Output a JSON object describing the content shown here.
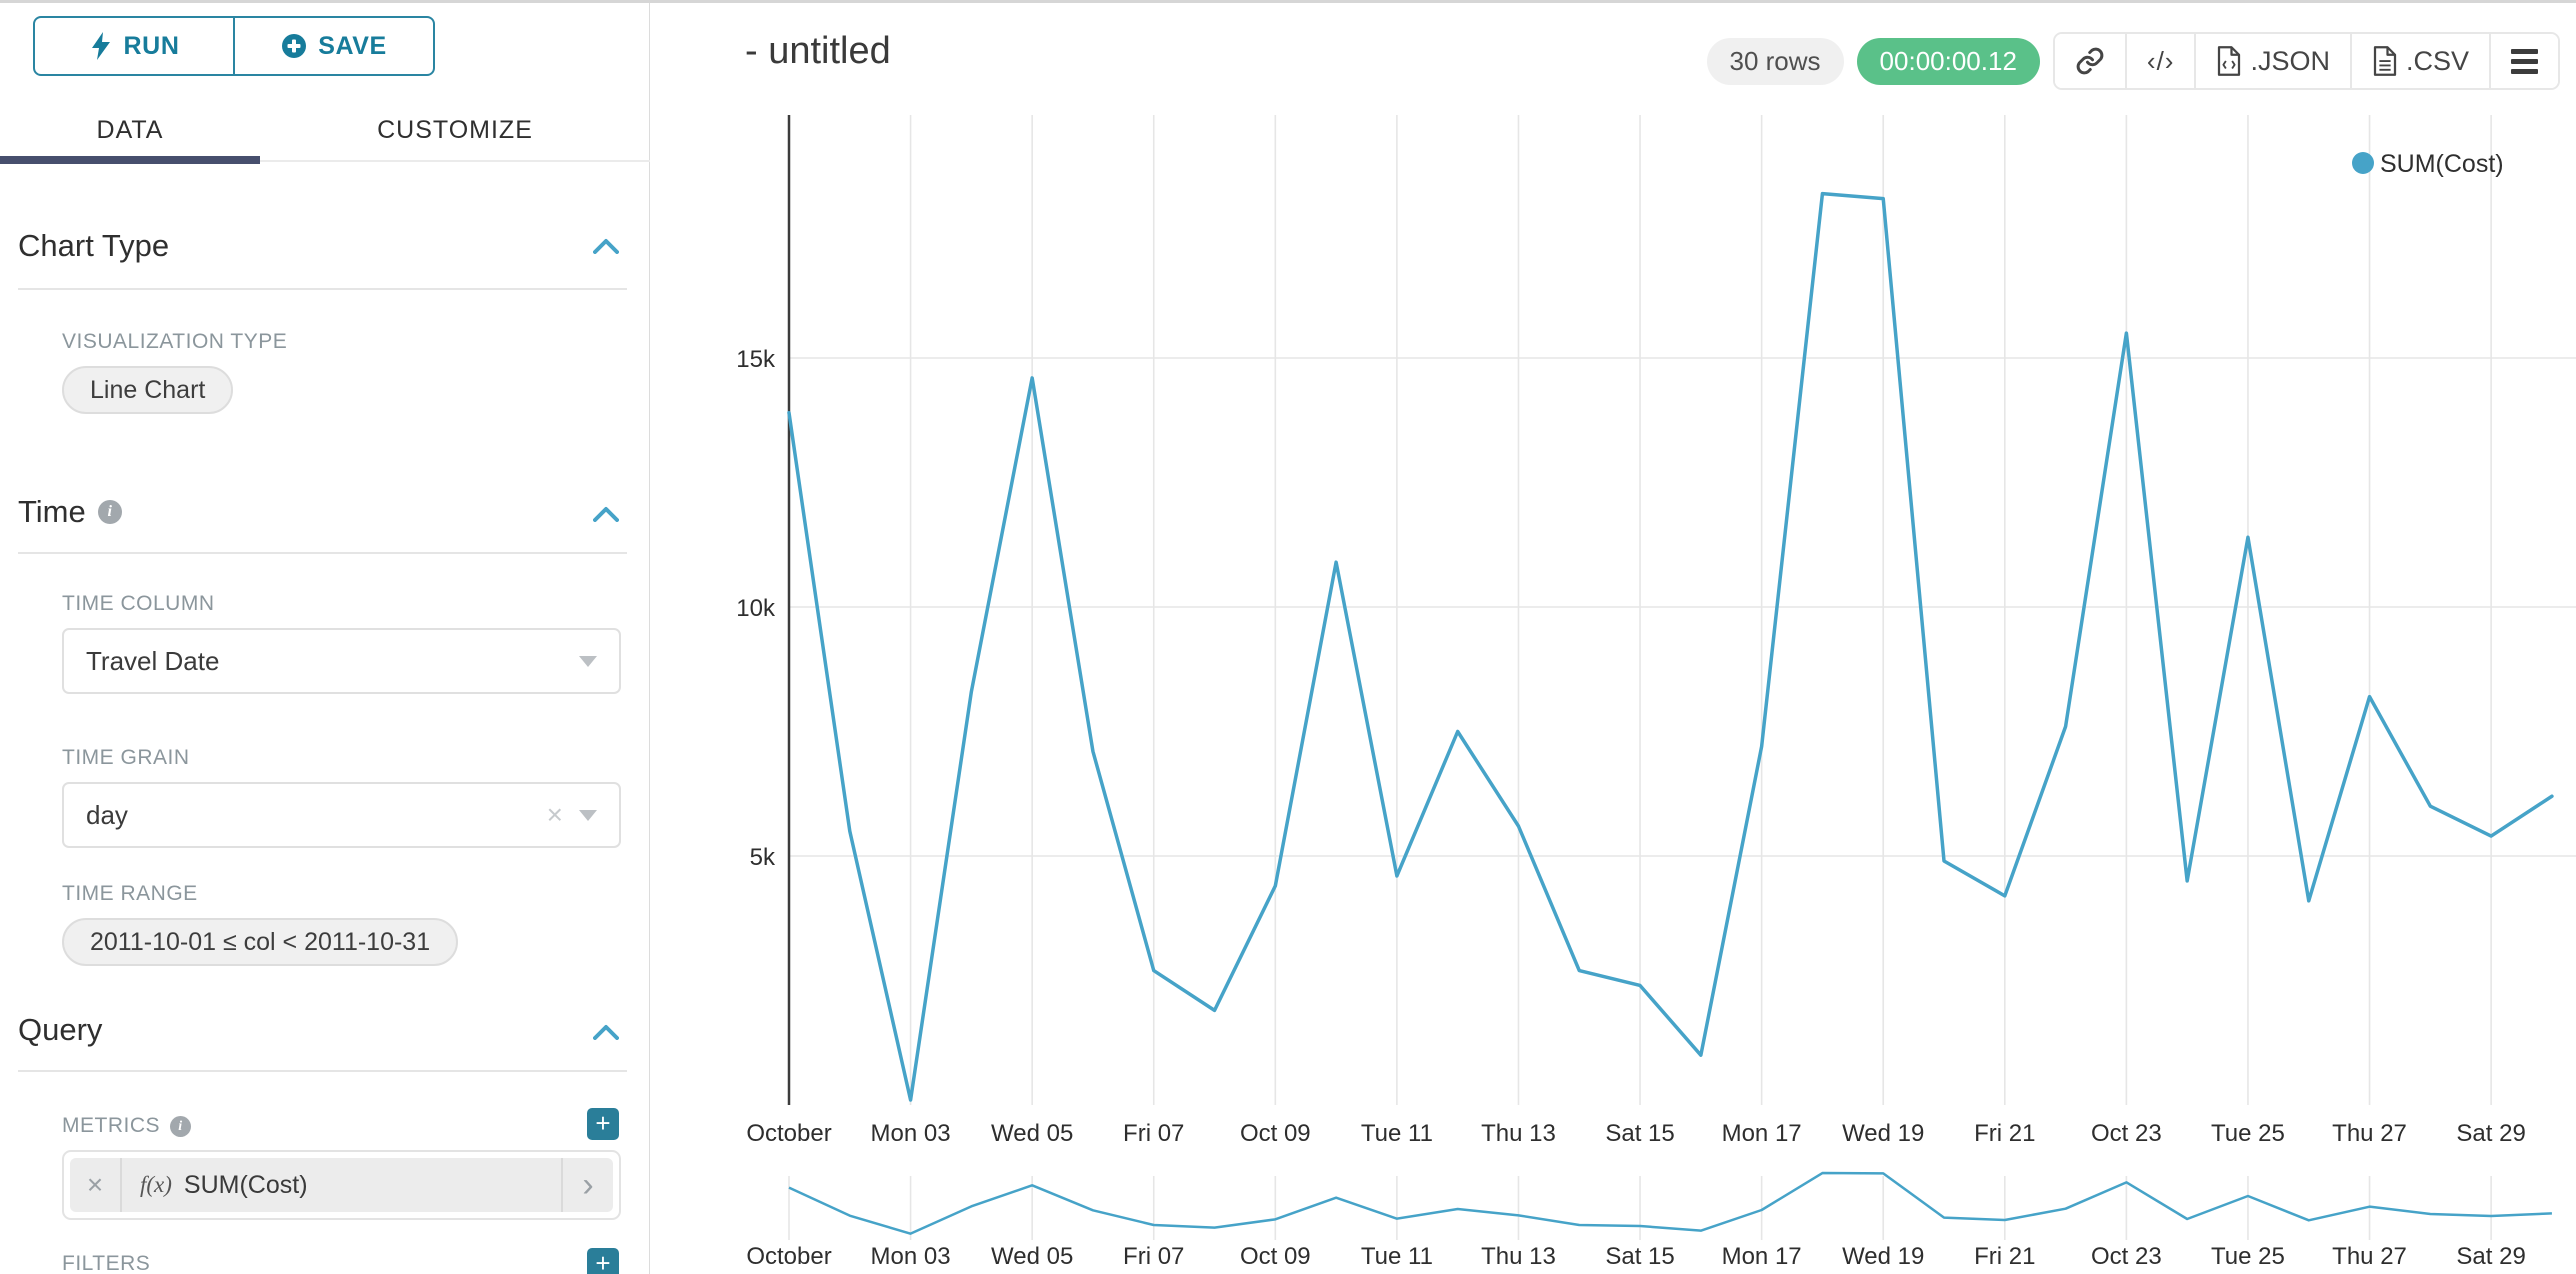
{
  "theme": {
    "accent_teal": "#177c9b",
    "navy_underline": "#474f6d",
    "success_green": "#5ac189",
    "plus_button_teal": "#2a7e99"
  },
  "sidebar": {
    "run_label": "RUN",
    "save_label": "SAVE",
    "tabs": [
      {
        "label": "DATA",
        "active": true
      },
      {
        "label": "CUSTOMIZE",
        "active": false
      }
    ],
    "chart_type": {
      "title": "Chart Type",
      "viz_type_label": "VISUALIZATION TYPE",
      "viz_type_value": "Line Chart"
    },
    "time": {
      "title": "Time",
      "time_column_label": "TIME COLUMN",
      "time_column_value": "Travel Date",
      "time_grain_label": "TIME GRAIN",
      "time_grain_value": "day",
      "time_range_label": "TIME RANGE",
      "time_range_value": "2011-10-01 ≤ col < 2011-10-31"
    },
    "query": {
      "title": "Query",
      "metrics_label": "METRICS",
      "metric_fx": "f(x)",
      "metric_value": "SUM(Cost)",
      "filters_label": "FILTERS"
    }
  },
  "header": {
    "title": "- untitled",
    "rows_badge": "30 rows",
    "timer_badge": "00:00:00.12",
    "link_icon": "link-icon",
    "code_icon": "code-icon",
    "export_json_label": ".JSON",
    "export_csv_label": ".CSV",
    "menu_icon": "hamburger-menu-icon"
  },
  "chart_data": {
    "type": "line",
    "title": "- untitled",
    "xlabel": "",
    "ylabel": "",
    "ylim": [
      0,
      19800
    ],
    "grid": true,
    "legend_position": "top-right",
    "has_range_selector": true,
    "colors": {
      "line": "#46a3c8",
      "grid": "#e6e6e6",
      "axis": "#3c3c3c"
    },
    "x": [
      "2011-10-01",
      "2011-10-02",
      "2011-10-03",
      "2011-10-04",
      "2011-10-05",
      "2011-10-06",
      "2011-10-07",
      "2011-10-08",
      "2011-10-09",
      "2011-10-10",
      "2011-10-11",
      "2011-10-12",
      "2011-10-13",
      "2011-10-14",
      "2011-10-15",
      "2011-10-16",
      "2011-10-17",
      "2011-10-18",
      "2011-10-19",
      "2011-10-20",
      "2011-10-21",
      "2011-10-22",
      "2011-10-23",
      "2011-10-24",
      "2011-10-25",
      "2011-10-26",
      "2011-10-27",
      "2011-10-28",
      "2011-10-29",
      "2011-10-30"
    ],
    "series": [
      {
        "name": "SUM(Cost)",
        "values": [
          13900,
          5500,
          100,
          8300,
          14600,
          7100,
          2700,
          1900,
          4400,
          10900,
          4600,
          7500,
          5600,
          2700,
          2400,
          1000,
          7200,
          18300,
          18200,
          4900,
          4200,
          7600,
          15500,
          4500,
          11400,
          4100,
          8200,
          6000,
          5400,
          6200
        ]
      }
    ],
    "x_tick_positions": [
      1,
      3,
      5,
      7,
      9,
      11,
      13,
      15,
      17,
      19,
      21,
      23,
      25,
      27,
      29
    ],
    "x_tick_labels": [
      "October",
      "Mon 03",
      "Wed 05",
      "Fri 07",
      "Oct 09",
      "Tue 11",
      "Thu 13",
      "Sat 15",
      "Mon 17",
      "Wed 19",
      "Fri 21",
      "Oct 23",
      "Tue 25",
      "Thu 27",
      "Sat 29"
    ],
    "y_ticks": [
      {
        "value": 5000,
        "label": "5k"
      },
      {
        "value": 10000,
        "label": "10k"
      },
      {
        "value": 15000,
        "label": "15k"
      }
    ]
  }
}
